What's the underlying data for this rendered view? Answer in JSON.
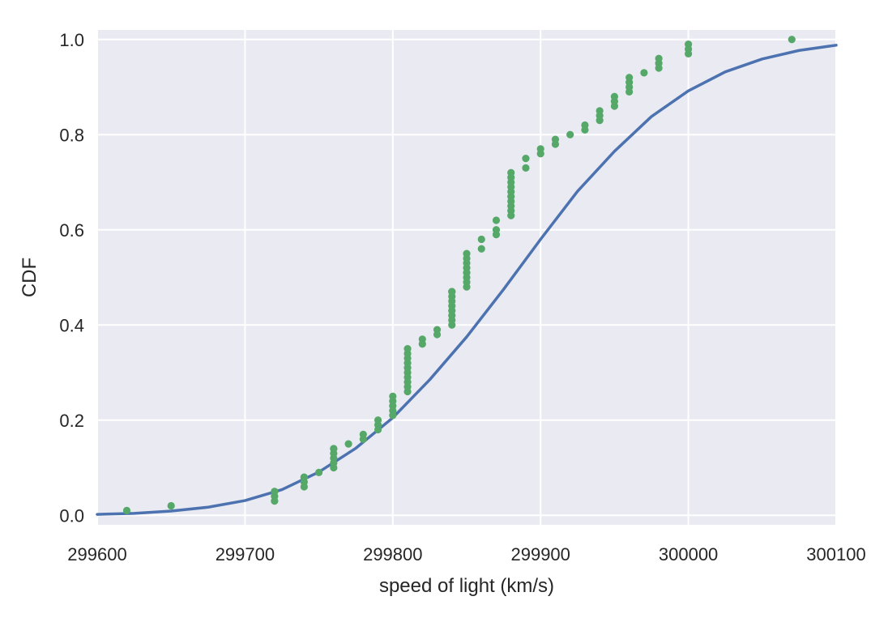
{
  "chart_data": {
    "type": "scatter",
    "xlabel": "speed of light (km/s)",
    "ylabel": "CDF",
    "xlim": [
      299600,
      300100
    ],
    "ylim": [
      -0.02,
      1.02
    ],
    "x_ticks": [
      299600,
      299700,
      299800,
      299900,
      300000,
      300100
    ],
    "y_ticks": [
      0.0,
      0.2,
      0.4,
      0.6,
      0.8,
      1.0
    ],
    "x_tick_labels": [
      "299600",
      "299700",
      "299800",
      "299900",
      "300000",
      "300100"
    ],
    "y_tick_labels": [
      "0.0",
      "0.2",
      "0.4",
      "0.6",
      "0.8",
      "1.0"
    ],
    "grid": true,
    "background_color": "#EAEAF2",
    "grid_color": "#FFFFFF",
    "series": [
      {
        "kind": "line",
        "color": "#4C72B0",
        "x": [
          299600,
          299625,
          299650,
          299675,
          299700,
          299725,
          299750,
          299775,
          299800,
          299825,
          299850,
          299875,
          299900,
          299925,
          299950,
          299975,
          300000,
          300025,
          300050,
          300075,
          300100
        ],
        "y": [
          0.002,
          0.004,
          0.009,
          0.017,
          0.031,
          0.054,
          0.091,
          0.141,
          0.205,
          0.285,
          0.375,
          0.475,
          0.58,
          0.681,
          0.765,
          0.838,
          0.892,
          0.932,
          0.959,
          0.977,
          0.988
        ]
      },
      {
        "kind": "points",
        "color": "#55A868",
        "x": [
          299620,
          299650,
          299720,
          299720,
          299720,
          299720,
          299740,
          299740,
          299740,
          299740,
          299750,
          299760,
          299760,
          299760,
          299760,
          299760,
          299760,
          299770,
          299780,
          299780,
          299790,
          299790,
          299790,
          299800,
          299800,
          299800,
          299800,
          299800,
          299810,
          299810,
          299810,
          299810,
          299810,
          299810,
          299810,
          299810,
          299810,
          299810,
          299820,
          299820,
          299830,
          299830,
          299840,
          299840,
          299840,
          299840,
          299840,
          299840,
          299840,
          299840,
          299840,
          299850,
          299850,
          299850,
          299850,
          299850,
          299850,
          299850,
          299850,
          299860,
          299860,
          299870,
          299870,
          299870,
          299880,
          299880,
          299880,
          299880,
          299880,
          299880,
          299880,
          299880,
          299880,
          299880,
          299890,
          299890,
          299900,
          299900,
          299910,
          299910,
          299920,
          299930,
          299930,
          299940,
          299940,
          299940,
          299950,
          299950,
          299950,
          299960,
          299960,
          299960,
          299960,
          299970,
          299980,
          299980,
          299980,
          300000,
          300000,
          300000,
          300070
        ],
        "y": [
          0.01,
          0.02,
          0.03,
          0.04,
          0.05,
          0.05,
          0.06,
          0.07,
          0.08,
          0.08,
          0.09,
          0.1,
          0.11,
          0.12,
          0.13,
          0.14,
          0.14,
          0.15,
          0.16,
          0.17,
          0.18,
          0.19,
          0.2,
          0.21,
          0.22,
          0.23,
          0.24,
          0.25,
          0.26,
          0.27,
          0.28,
          0.29,
          0.3,
          0.31,
          0.32,
          0.33,
          0.34,
          0.35,
          0.36,
          0.37,
          0.38,
          0.39,
          0.4,
          0.41,
          0.42,
          0.43,
          0.44,
          0.45,
          0.46,
          0.47,
          0.47,
          0.48,
          0.49,
          0.5,
          0.51,
          0.52,
          0.53,
          0.54,
          0.55,
          0.56,
          0.58,
          0.59,
          0.6,
          0.62,
          0.63,
          0.64,
          0.65,
          0.66,
          0.67,
          0.68,
          0.69,
          0.7,
          0.71,
          0.72,
          0.73,
          0.75,
          0.76,
          0.77,
          0.78,
          0.79,
          0.8,
          0.81,
          0.82,
          0.83,
          0.84,
          0.85,
          0.86,
          0.87,
          0.88,
          0.89,
          0.9,
          0.91,
          0.92,
          0.93,
          0.94,
          0.95,
          0.96,
          0.97,
          0.98,
          0.99,
          1.0
        ]
      }
    ]
  }
}
